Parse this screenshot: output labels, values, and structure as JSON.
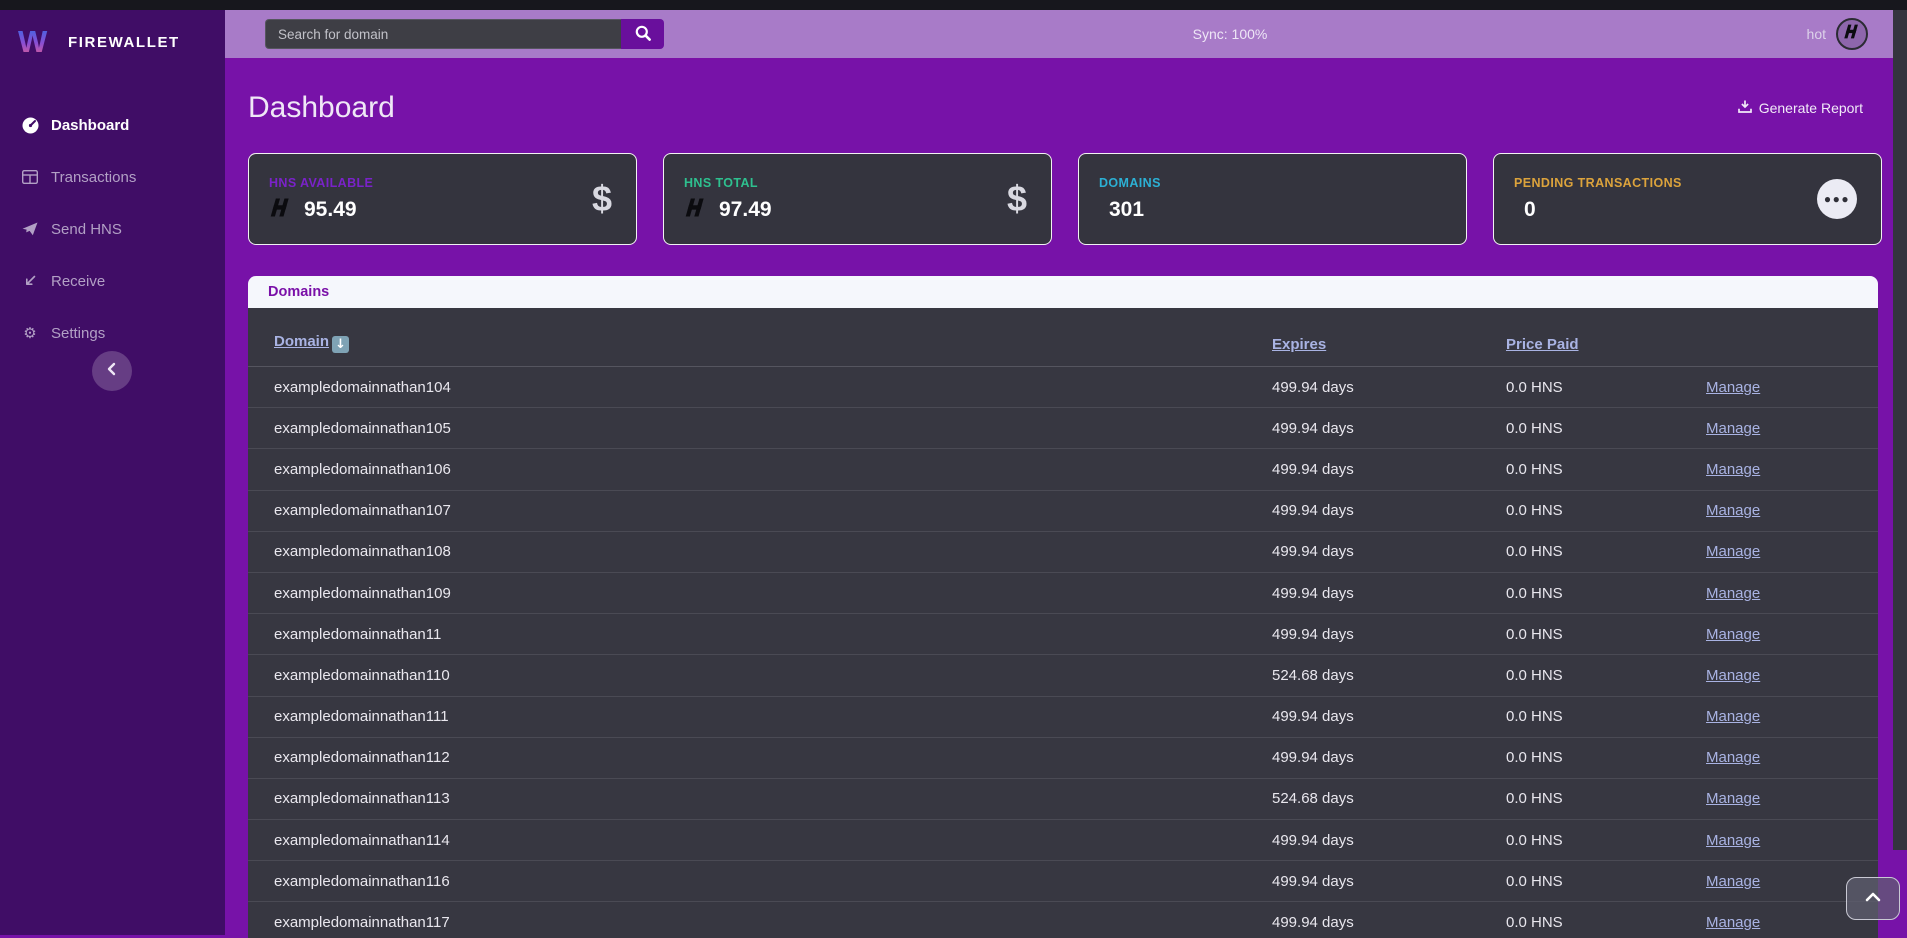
{
  "brand": {
    "name": "FIREWALLET",
    "logo_icon": "firewallet-logo"
  },
  "topbar": {
    "search": {
      "placeholder": "Search for domain",
      "button_icon": "search-icon"
    },
    "sync_status": "Sync: 100%",
    "wallet_name": "hot",
    "wallet_icon": "handshake-icon"
  },
  "sidebar": {
    "items": [
      {
        "label": "Dashboard",
        "icon": "tachometer-icon",
        "active": true
      },
      {
        "label": "Transactions",
        "icon": "table-icon"
      },
      {
        "label": "Send HNS",
        "icon": "send-icon"
      },
      {
        "label": "Receive",
        "icon": "receive-icon"
      },
      {
        "label": "Settings",
        "icon": "gear-icon"
      }
    ],
    "collapse_icon": "chevron-left-icon"
  },
  "page": {
    "title": "Dashboard",
    "generate_report": {
      "label": "Generate Report",
      "icon": "download-icon"
    }
  },
  "stat_cards": [
    {
      "label": "HNS AVAILABLE",
      "value": "95.49",
      "accent": "#7a22c9",
      "value_icon": "hns-logo-icon",
      "right_icon": "dollar-icon"
    },
    {
      "label": "HNS TOTAL",
      "value": "97.49",
      "accent": "#2ec08f",
      "value_icon": "hns-logo-icon",
      "right_icon": "dollar-icon"
    },
    {
      "label": "DOMAINS",
      "value": "301",
      "accent": "#2cb0d4"
    },
    {
      "label": "PENDING TRANSACTIONS",
      "value": "0",
      "accent": "#dca33c",
      "right_icon": "ellipsis-icon"
    }
  ],
  "domains_panel": {
    "title": "Domains",
    "columns": {
      "domain": "Domain",
      "expires": "Expires",
      "price_paid": "Price Paid"
    },
    "sort_icon": "down-arrow-icon",
    "manage_label": "Manage",
    "rows": [
      {
        "domain": "exampledomainnathan104",
        "expires": "499.94 days",
        "price_paid": "0.0 HNS"
      },
      {
        "domain": "exampledomainnathan105",
        "expires": "499.94 days",
        "price_paid": "0.0 HNS"
      },
      {
        "domain": "exampledomainnathan106",
        "expires": "499.94 days",
        "price_paid": "0.0 HNS"
      },
      {
        "domain": "exampledomainnathan107",
        "expires": "499.94 days",
        "price_paid": "0.0 HNS"
      },
      {
        "domain": "exampledomainnathan108",
        "expires": "499.94 days",
        "price_paid": "0.0 HNS"
      },
      {
        "domain": "exampledomainnathan109",
        "expires": "499.94 days",
        "price_paid": "0.0 HNS"
      },
      {
        "domain": "exampledomainnathan11",
        "expires": "499.94 days",
        "price_paid": "0.0 HNS"
      },
      {
        "domain": "exampledomainnathan110",
        "expires": "524.68 days",
        "price_paid": "0.0 HNS"
      },
      {
        "domain": "exampledomainnathan111",
        "expires": "499.94 days",
        "price_paid": "0.0 HNS"
      },
      {
        "domain": "exampledomainnathan112",
        "expires": "499.94 days",
        "price_paid": "0.0 HNS"
      },
      {
        "domain": "exampledomainnathan113",
        "expires": "524.68 days",
        "price_paid": "0.0 HNS"
      },
      {
        "domain": "exampledomainnathan114",
        "expires": "499.94 days",
        "price_paid": "0.0 HNS"
      },
      {
        "domain": "exampledomainnathan116",
        "expires": "499.94 days",
        "price_paid": "0.0 HNS"
      },
      {
        "domain": "exampledomainnathan117",
        "expires": "499.94 days",
        "price_paid": "0.0 HNS"
      }
    ]
  },
  "scroll_top_icon": "chevron-up-icon",
  "colors": {
    "main_background": "#7712a8",
    "sidebar_background": "#400d66",
    "topbar_background": "#a87bc8",
    "card_background": "#34343e",
    "link": "#a9b3e3"
  }
}
